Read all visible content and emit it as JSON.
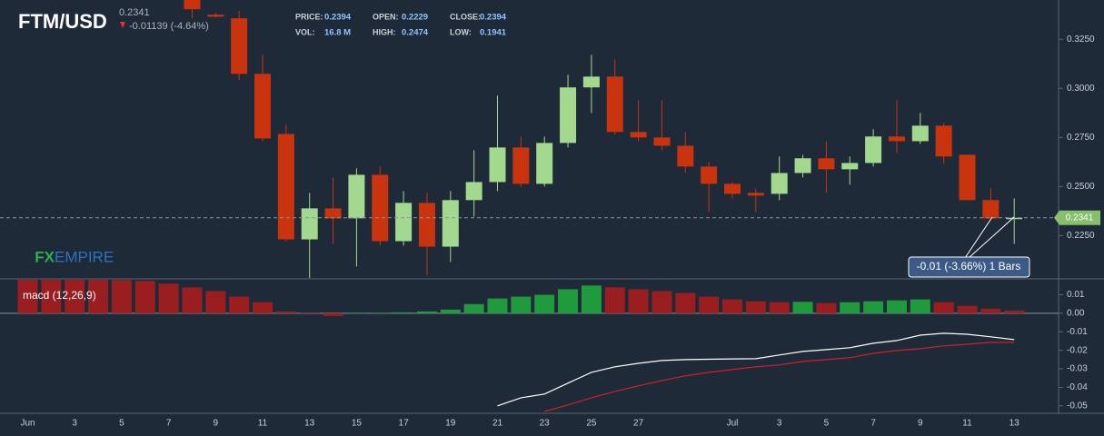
{
  "header": {
    "symbol": "FTM/USD",
    "last": "0.2341",
    "change": "-0.01139 (-4.64%)",
    "stats": [
      {
        "label": "PRICE:",
        "value": "0.2394"
      },
      {
        "label": "OPEN:",
        "value": "0.2229"
      },
      {
        "label": "CLOSE:",
        "value": "0.2394"
      },
      {
        "label": "VOL:",
        "value": "16.8 M"
      },
      {
        "label": "HIGH:",
        "value": "0.2474"
      },
      {
        "label": "LOW:",
        "value": "0.1941"
      }
    ],
    "watermark": {
      "fx": "FX",
      "rest": "EMPIRE"
    }
  },
  "chart_data": [
    {
      "type": "candlestick",
      "categories": [
        "Jun",
        null,
        "3",
        null,
        "5",
        null,
        "7",
        null,
        "9",
        null,
        "11",
        null,
        "13",
        null,
        "15",
        null,
        "17",
        null,
        "19",
        null,
        "21",
        null,
        "23",
        null,
        "25",
        null,
        "27",
        null,
        null,
        null,
        "Jul",
        null,
        "3",
        null,
        "5",
        null,
        "7",
        null,
        "9",
        null,
        "11",
        null,
        "13"
      ],
      "open": [
        null,
        null,
        null,
        null,
        null,
        null,
        null,
        0.352,
        0.3375,
        0.3357,
        0.3074,
        0.2768,
        0.2231,
        0.2389,
        0.2338,
        0.256,
        0.2222,
        0.2417,
        0.2194,
        0.2431,
        0.2523,
        0.2699,
        0.2514,
        0.2722,
        0.3005,
        0.306,
        0.2778,
        0.275,
        0.2708,
        0.2602,
        0.2514,
        0.2468,
        0.2463,
        0.2569,
        0.2644,
        0.2588,
        0.262,
        0.2755,
        0.2731,
        0.281,
        0.2662,
        0.2431,
        0.2338
      ],
      "high": [
        null,
        null,
        null,
        null,
        null,
        null,
        null,
        0.356,
        0.3385,
        0.3394,
        0.3171,
        0.2815,
        0.2468,
        0.2546,
        0.2593,
        0.2602,
        0.2477,
        0.2468,
        0.2477,
        0.2685,
        0.2963,
        0.2755,
        0.2755,
        0.3069,
        0.3171,
        0.3148,
        0.294,
        0.294,
        0.2778,
        0.2625,
        0.2523,
        0.2491,
        0.2653,
        0.2662,
        0.2731,
        0.2653,
        0.2792,
        0.294,
        0.2875,
        0.2824,
        0.2662,
        0.2491,
        0.244
      ],
      "low": [
        null,
        null,
        null,
        null,
        null,
        null,
        null,
        0.3357,
        0.336,
        0.3042,
        0.2731,
        0.2222,
        0.2028,
        0.2208,
        0.2093,
        0.2199,
        0.2199,
        0.2046,
        0.2116,
        0.2347,
        0.2477,
        0.25,
        0.25,
        0.2699,
        0.2875,
        0.2764,
        0.2731,
        0.2685,
        0.2569,
        0.237,
        0.244,
        0.237,
        0.2431,
        0.2546,
        0.2468,
        0.2509,
        0.2602,
        0.2671,
        0.2718,
        0.2616,
        0.2431,
        0.2338,
        0.2208
      ],
      "close": [
        null,
        null,
        null,
        null,
        null,
        null,
        null,
        0.3403,
        0.3365,
        0.3074,
        0.2745,
        0.2231,
        0.2389,
        0.2338,
        0.256,
        0.2222,
        0.2417,
        0.2194,
        0.2431,
        0.2523,
        0.2699,
        0.2514,
        0.2722,
        0.3005,
        0.306,
        0.2778,
        0.275,
        0.2708,
        0.2602,
        0.2514,
        0.2463,
        0.2454,
        0.2569,
        0.2644,
        0.2588,
        0.262,
        0.2755,
        0.2731,
        0.281,
        0.2653,
        0.2431,
        0.2338,
        0.2341
      ],
      "up_color": "#a3d98f",
      "down_color": "#c9340f",
      "last_price": {
        "value": 0.2341,
        "label": "0.2341",
        "color": "#86c06c"
      },
      "annotation": "-0.01 (-3.66%) 1 Bars",
      "ylim": [
        0.203,
        0.345
      ],
      "yticks": [
        {
          "value": 0.225,
          "label": "0.2250"
        },
        {
          "value": 0.25,
          "label": "0.2500"
        },
        {
          "value": 0.275,
          "label": "0.2750"
        },
        {
          "value": 0.3,
          "label": "0.3000"
        },
        {
          "value": 0.325,
          "label": "0.3250"
        }
      ]
    },
    {
      "type": "bar",
      "title": "macd (12,26,9)",
      "values": [
        0.0185,
        0.0185,
        0.0185,
        0.0185,
        0.018,
        0.0175,
        0.016,
        0.014,
        0.012,
        0.009,
        0.006,
        0.001,
        0.0005,
        -0.0015,
        0,
        0.0003,
        0.0005,
        0.001,
        0.002,
        0.005,
        0.008,
        0.009,
        0.01,
        0.013,
        0.015,
        0.014,
        0.013,
        0.012,
        0.011,
        0.009,
        0.0075,
        0.0065,
        0.006,
        0.0062,
        0.0055,
        0.006,
        0.0065,
        0.007,
        0.0075,
        0.006,
        0.004,
        0.0025,
        0.0015
      ],
      "up_color": "#1f9a3c",
      "down_color": "#9a1d1f",
      "series": [
        {
          "type": "line",
          "color": "#ffffff",
          "values": [
            null,
            null,
            null,
            null,
            null,
            null,
            null,
            null,
            null,
            null,
            null,
            null,
            null,
            null,
            null,
            null,
            null,
            null,
            null,
            null,
            -0.05,
            -0.0456,
            -0.0436,
            -0.0377,
            -0.0319,
            -0.0289,
            -0.027,
            -0.0255,
            -0.025,
            -0.0248,
            -0.0246,
            -0.0245,
            -0.0225,
            -0.0206,
            -0.0196,
            -0.0186,
            -0.0162,
            -0.0147,
            -0.0118,
            -0.0108,
            -0.0113,
            -0.0127,
            -0.0142
          ]
        },
        {
          "type": "line",
          "color": "#d0202a",
          "values": [
            null,
            null,
            null,
            null,
            null,
            null,
            null,
            null,
            null,
            null,
            null,
            null,
            null,
            null,
            null,
            null,
            null,
            null,
            null,
            null,
            null,
            null,
            -0.053,
            -0.0495,
            -0.0456,
            -0.0422,
            -0.0392,
            -0.0363,
            -0.0338,
            -0.0319,
            -0.0304,
            -0.0289,
            -0.0279,
            -0.026,
            -0.025,
            -0.024,
            -0.0216,
            -0.0201,
            -0.0191,
            -0.0176,
            -0.0167,
            -0.0157,
            -0.0157
          ]
        }
      ],
      "ylim": [
        -0.054,
        0.0186
      ],
      "yticks": [
        -0.05,
        -0.04,
        -0.03,
        -0.02,
        -0.01,
        {
          "value": 0,
          "label": "0.00"
        },
        0.01
      ]
    }
  ]
}
